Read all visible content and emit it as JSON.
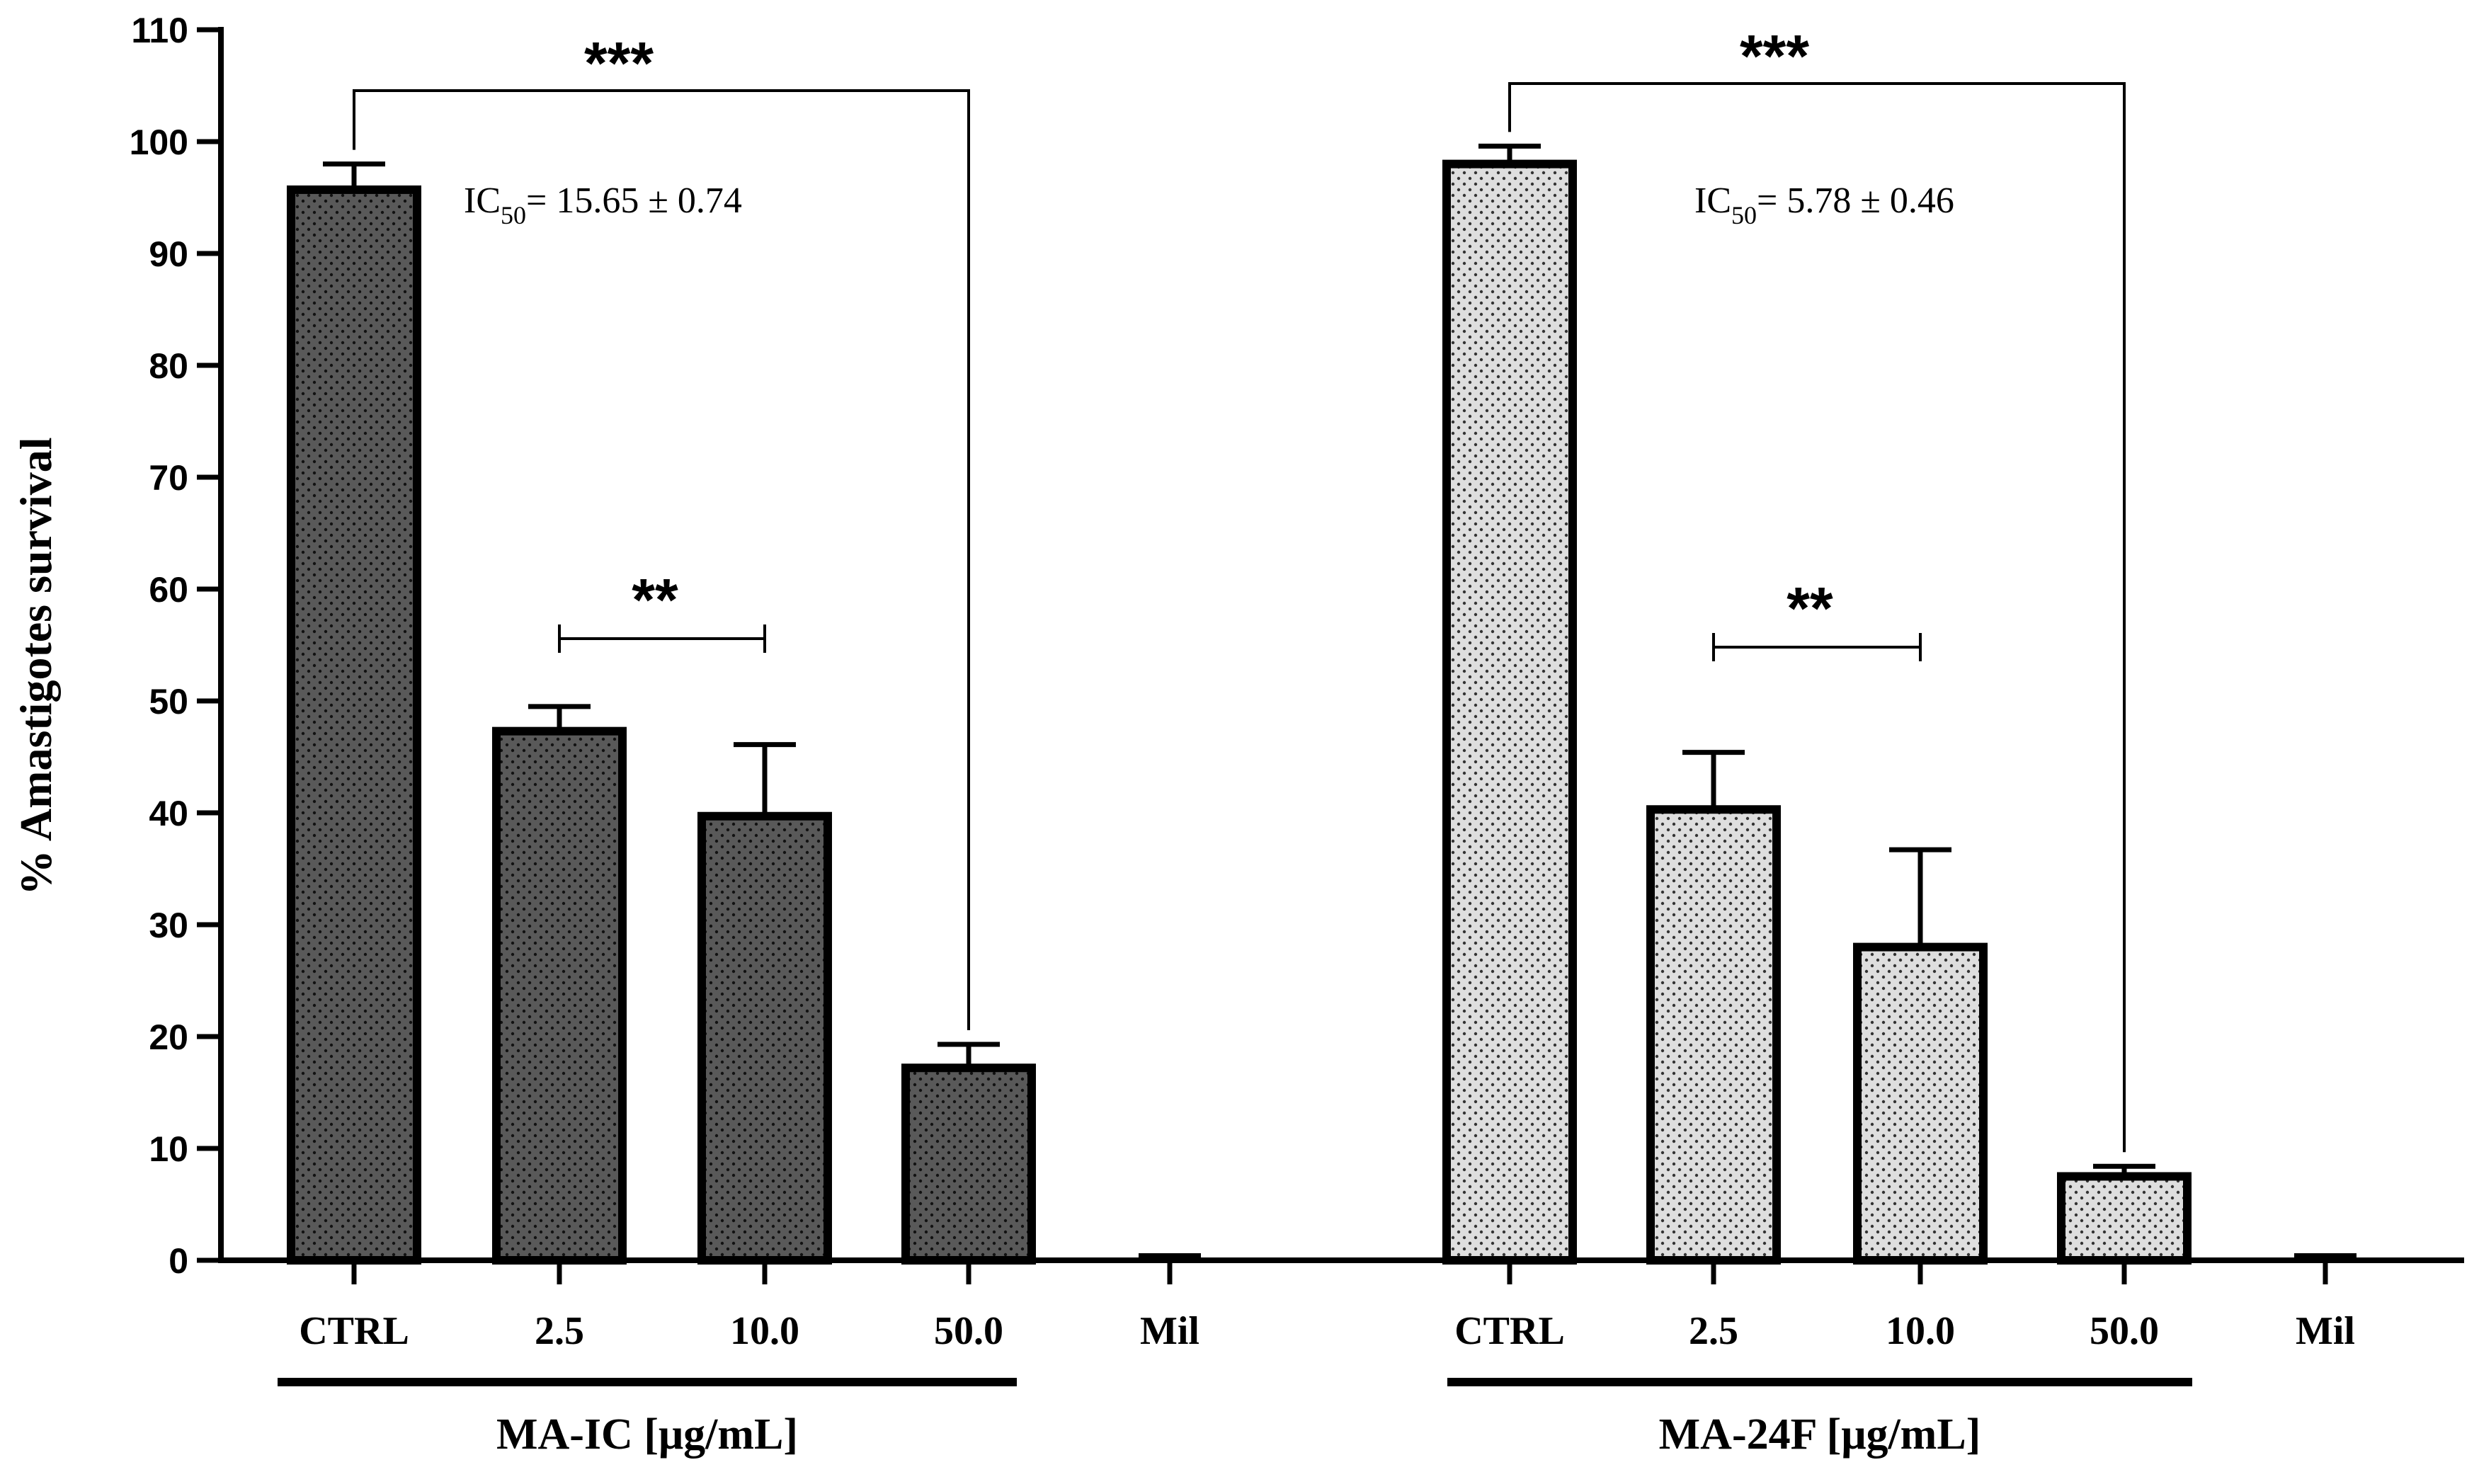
{
  "chart_data": {
    "type": "bar",
    "title": "",
    "xlabel": "",
    "ylabel": "% Amastigotes survival",
    "ylim": [
      0,
      110
    ],
    "yticks": [
      0,
      10,
      20,
      30,
      40,
      50,
      60,
      70,
      80,
      90,
      100,
      110
    ],
    "grid": false,
    "groups": [
      {
        "name": "MA-IC [μg/mL]",
        "color": "#595959",
        "categories": [
          "CTRL",
          "2.5",
          "10.0",
          "50.0",
          "Mil"
        ],
        "values": [
          95.7,
          47.3,
          39.7,
          17.2,
          0.5
        ],
        "errors": [
          2.3,
          2.2,
          6.4,
          2.1,
          0
        ],
        "ic50_label": "IC",
        "ic50_sub": "50",
        "ic50_value": "= 15.65 ± 0.74",
        "annotations": [
          {
            "text": "***",
            "from": 0,
            "to": 3
          },
          {
            "text": "**",
            "from": 1,
            "to": 2
          }
        ]
      },
      {
        "name": "MA-24F [μg/mL]",
        "color": "#d9d9d9",
        "categories": [
          "CTRL",
          "2.5",
          "10.0",
          "50.0",
          "Mil"
        ],
        "values": [
          98.0,
          40.3,
          28.0,
          7.5,
          0.5
        ],
        "errors": [
          1.6,
          5.1,
          8.7,
          0.9,
          0
        ],
        "ic50_label": "IC",
        "ic50_sub": "50",
        "ic50_value": "= 5.78 ± 0.46",
        "annotations": [
          {
            "text": "***",
            "from": 0,
            "to": 3
          },
          {
            "text": "**",
            "from": 1,
            "to": 2
          }
        ]
      }
    ]
  }
}
